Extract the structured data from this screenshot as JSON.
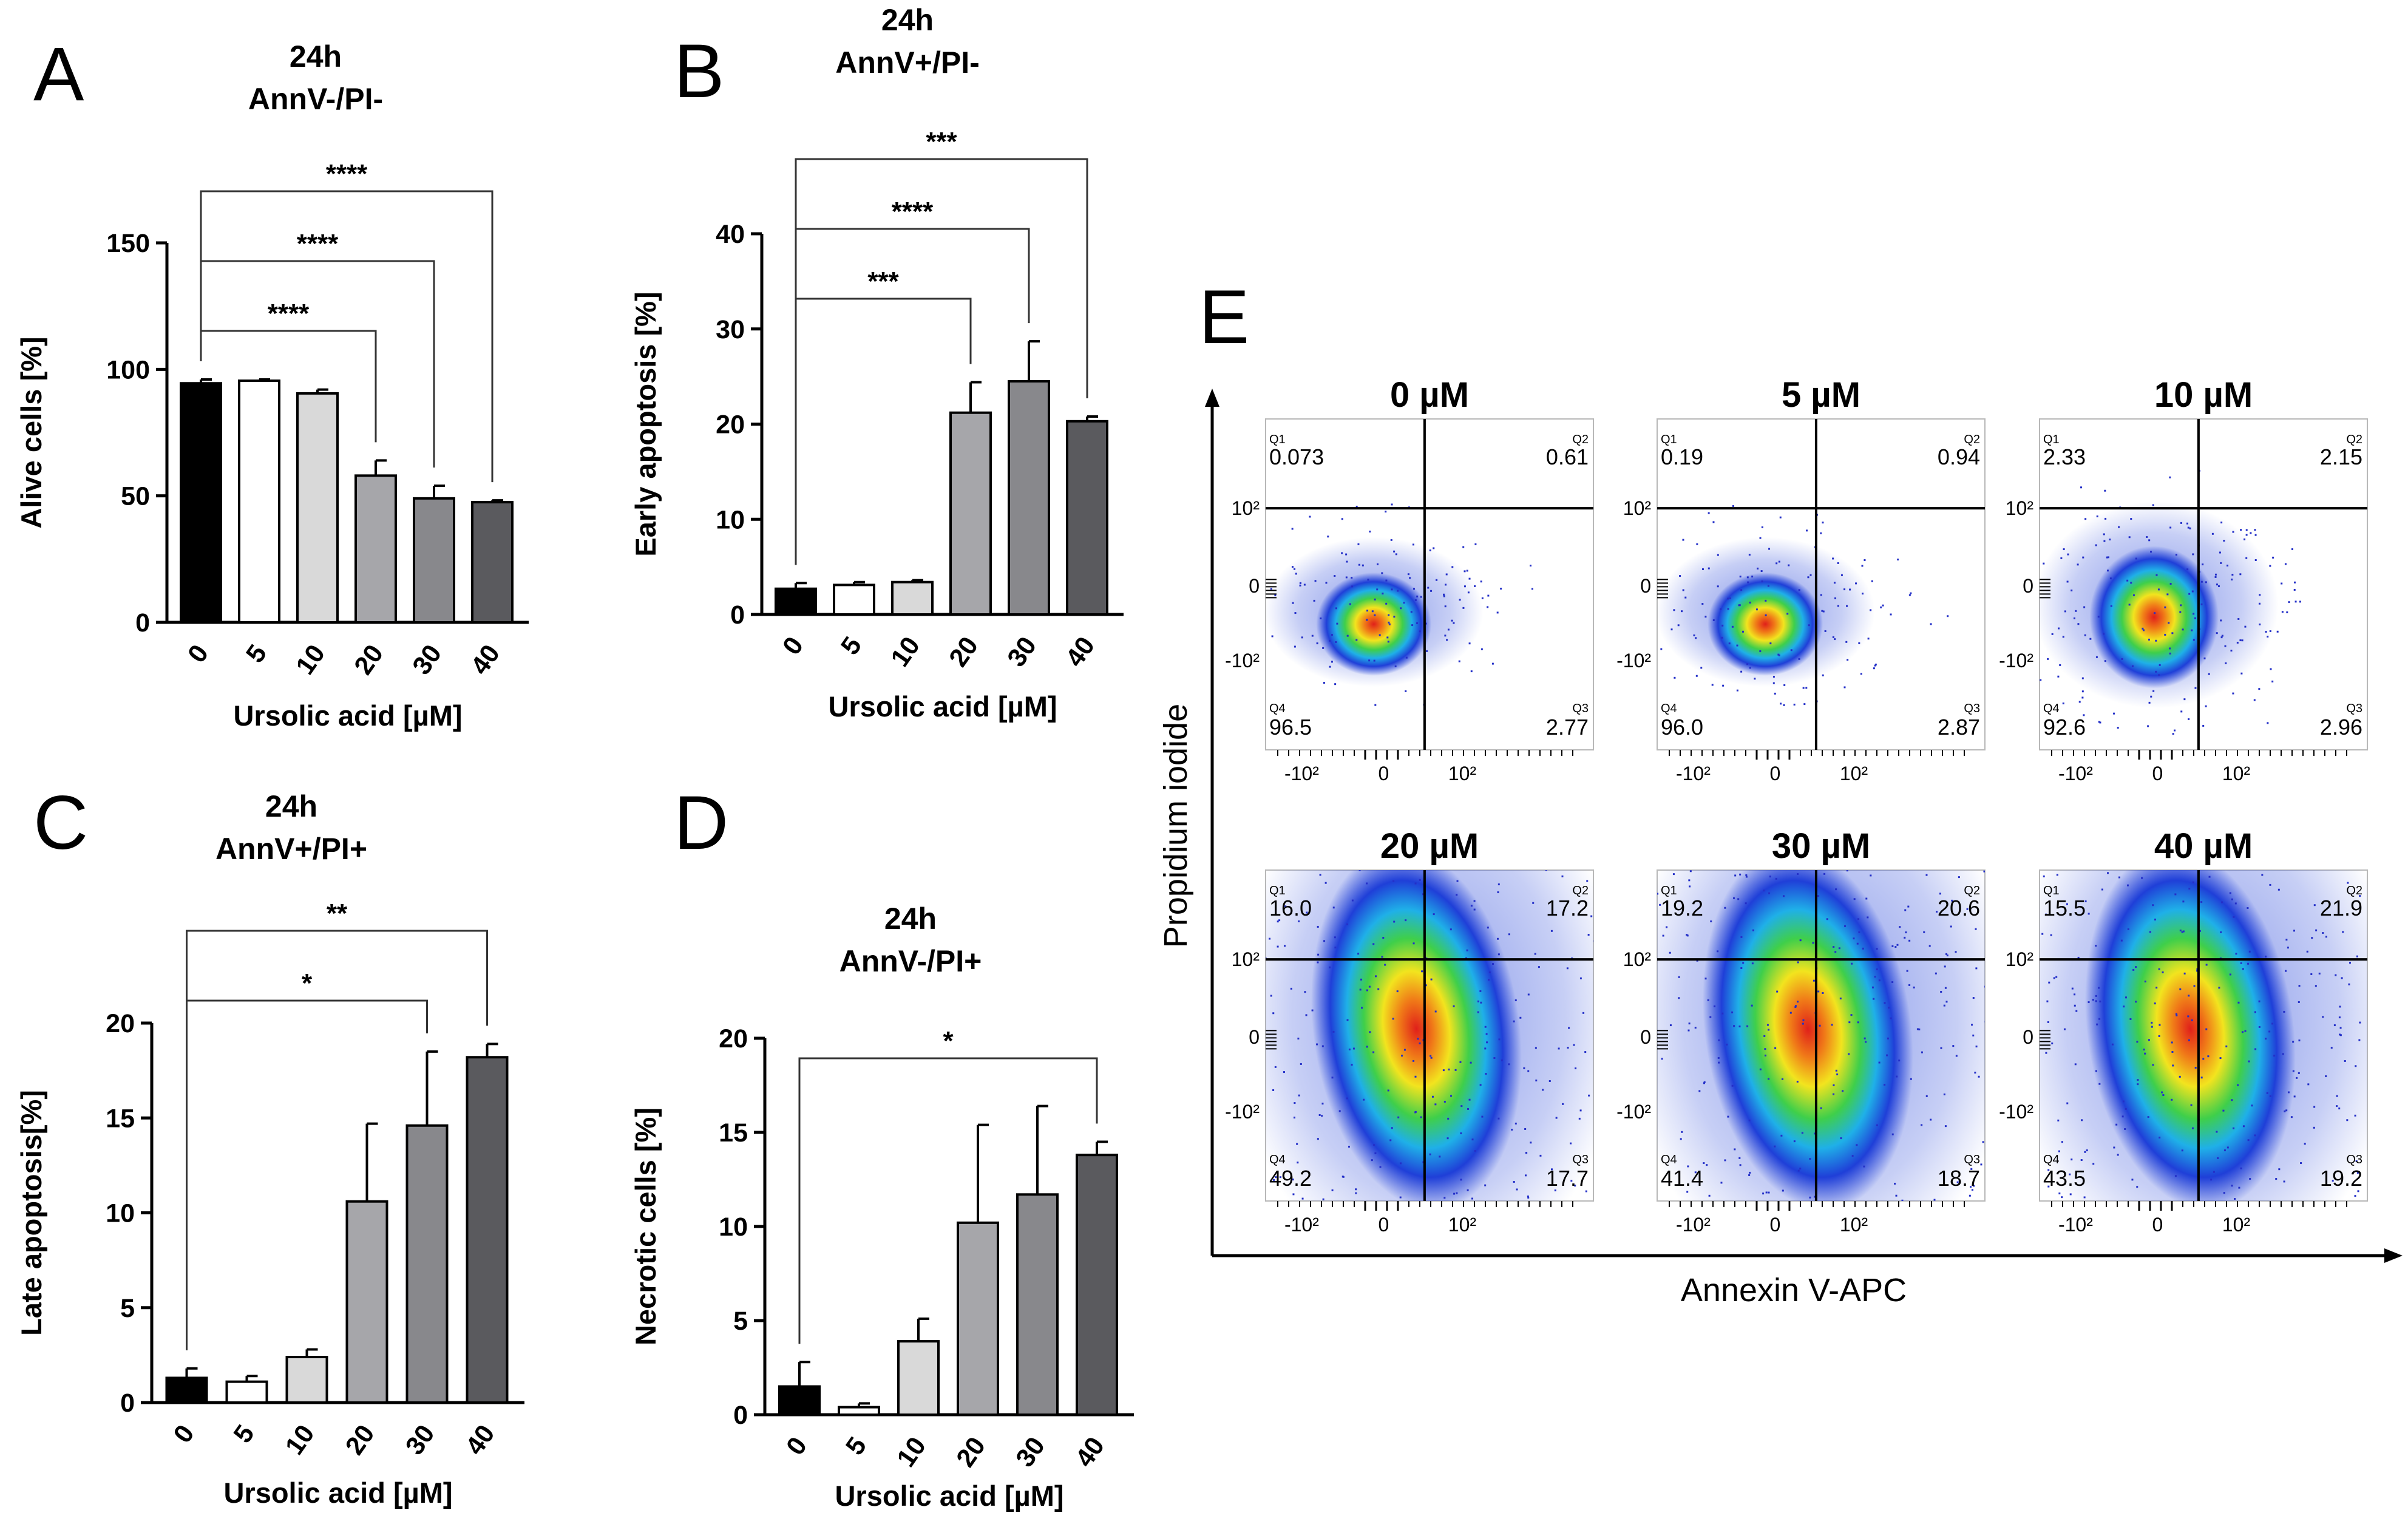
{
  "colors": {
    "bars": [
      "#000000",
      "#ffffff",
      "#d9d9d9",
      "#a6a6aa",
      "#88888c",
      "#5a5a5e"
    ],
    "axis": "#000000"
  },
  "chart_data": [
    {
      "type": "bar",
      "panel": "A",
      "title": "24h",
      "subtitle": "AnnV-/PI-",
      "xlabel": "Ursolic acid [µM]",
      "ylabel": "Alive cells [%]",
      "categories": [
        "0",
        "5",
        "10",
        "20",
        "30",
        "40"
      ],
      "values": [
        94.5,
        95.5,
        90.5,
        58,
        49,
        47.5
      ],
      "errors": [
        1.5,
        0.5,
        1.5,
        6,
        5,
        0.7
      ],
      "ylim": [
        0,
        150
      ],
      "yticks": [
        0,
        50,
        100,
        150
      ],
      "significance": [
        {
          "from": "0",
          "to": "20",
          "label": "****",
          "level": 1
        },
        {
          "from": "0",
          "to": "30",
          "label": "****",
          "level": 2
        },
        {
          "from": "0",
          "to": "40",
          "label": "****",
          "level": 3
        }
      ]
    },
    {
      "type": "bar",
      "panel": "B",
      "title": "24h",
      "subtitle": "AnnV+/PI-",
      "xlabel": "Ursolic acid [µM]",
      "ylabel": "Early apoptosis [%]",
      "categories": [
        "0",
        "5",
        "10",
        "20",
        "30",
        "40"
      ],
      "values": [
        2.7,
        3.1,
        3.4,
        21.2,
        24.5,
        20.3
      ],
      "errors": [
        0.6,
        0.3,
        0.2,
        3.2,
        4.2,
        0.5
      ],
      "ylim": [
        0,
        40
      ],
      "yticks": [
        0,
        10,
        20,
        30,
        40
      ],
      "significance": [
        {
          "from": "0",
          "to": "20",
          "label": "***",
          "level": 1
        },
        {
          "from": "0",
          "to": "30",
          "label": "****",
          "level": 2
        },
        {
          "from": "0",
          "to": "40",
          "label": "***",
          "level": 3
        }
      ]
    },
    {
      "type": "bar",
      "panel": "C",
      "title": "24h",
      "subtitle": "AnnV+/PI+",
      "xlabel": "Ursolic acid [µM]",
      "ylabel": "Late apoptosis[%]",
      "categories": [
        "0",
        "5",
        "10",
        "20",
        "30",
        "40"
      ],
      "values": [
        1.3,
        1.1,
        2.4,
        10.6,
        14.6,
        18.2
      ],
      "errors": [
        0.5,
        0.3,
        0.4,
        4.1,
        3.9,
        0.7
      ],
      "ylim": [
        0,
        20
      ],
      "yticks": [
        0,
        5,
        10,
        15,
        20
      ],
      "significance": [
        {
          "from": "0",
          "to": "30",
          "label": "*",
          "level": 1
        },
        {
          "from": "0",
          "to": "40",
          "label": "**",
          "level": 2
        }
      ]
    },
    {
      "type": "bar",
      "panel": "D",
      "title": "24h",
      "subtitle": "AnnV-/PI+",
      "xlabel": "Ursolic acid [µM]",
      "ylabel": "Necrotic cells [%]",
      "categories": [
        "0",
        "5",
        "10",
        "20",
        "30",
        "40"
      ],
      "values": [
        1.5,
        0.4,
        3.9,
        10.2,
        11.7,
        13.8
      ],
      "errors": [
        1.3,
        0.2,
        1.2,
        5.2,
        4.7,
        0.7
      ],
      "ylim": [
        0,
        20
      ],
      "yticks": [
        0,
        5,
        10,
        15,
        20
      ],
      "significance": [
        {
          "from": "0",
          "to": "40",
          "label": "*",
          "level": 1
        }
      ]
    }
  ],
  "flow": {
    "panel": "E",
    "xlabel": "Annexin V-APC",
    "ylabel": "Propidium iodide",
    "xticks": [
      "-10²",
      "0",
      "10²"
    ],
    "yticks": [
      "10²",
      "0",
      "-10²"
    ],
    "quadrant_names": [
      "Q1",
      "Q2",
      "Q3",
      "Q4"
    ],
    "plots": [
      {
        "title": "0 µM",
        "q1": "0.073",
        "q2": "0.61",
        "q3": "2.77",
        "q4": "96.5"
      },
      {
        "title": "5 µM",
        "q1": "0.19",
        "q2": "0.94",
        "q3": "2.87",
        "q4": "96.0"
      },
      {
        "title": "10 µM",
        "q1": "2.33",
        "q2": "2.15",
        "q3": "2.96",
        "q4": "92.6"
      },
      {
        "title": "20 µM",
        "q1": "16.0",
        "q2": "17.2",
        "q3": "17.7",
        "q4": "49.2"
      },
      {
        "title": "30 µM",
        "q1": "19.2",
        "q2": "20.6",
        "q3": "18.7",
        "q4": "41.4"
      },
      {
        "title": "40 µM",
        "q1": "15.5",
        "q2": "21.9",
        "q3": "19.2",
        "q4": "43.5"
      }
    ]
  }
}
